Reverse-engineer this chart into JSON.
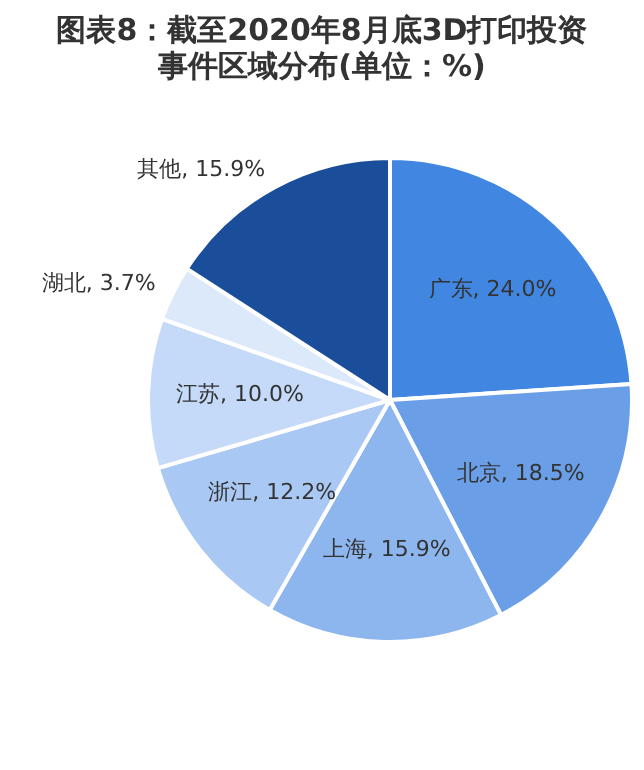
{
  "chart_data": {
    "type": "pie",
    "title": "图表8：截至2020年8月底3D打印投资事件区域分布(单位：%)",
    "categories": [
      "广东",
      "北京",
      "上海",
      "浙江",
      "江苏",
      "湖北",
      "其他"
    ],
    "values": [
      24.0,
      18.5,
      15.9,
      12.2,
      10.0,
      3.7,
      15.9
    ],
    "value_labels": [
      ", 24.0%",
      ", 18.5%",
      ", 15.9%",
      ", 12.2%",
      ", 10.0%",
      ", 3.7%",
      ", 15.9%"
    ],
    "colors": [
      "#4186e0",
      "#6a9fe8",
      "#8db6ef",
      "#a9c9f4",
      "#c4daf8",
      "#dce9fb",
      "#1a4d9a"
    ],
    "legend": false
  }
}
